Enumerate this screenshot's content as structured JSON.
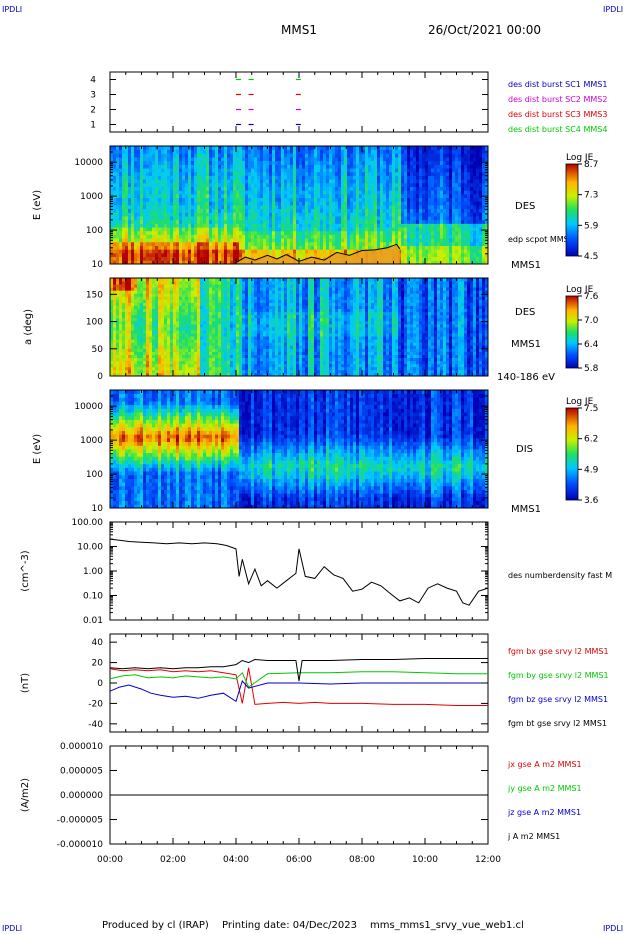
{
  "header": {
    "corner_label": "IPDLI",
    "spacecraft": "MMS1",
    "date": "26/Oct/2021 00:00"
  },
  "footer": {
    "producer": "Produced by cl (IRAP)",
    "printing": "Printing date: 04/Dec/2023",
    "product": "mms_mms1_srvy_vue_web1.cl"
  },
  "colors": {
    "red": "#e00000",
    "green": "#00c800",
    "blue": "#0000c8",
    "magenta": "#d000d0",
    "black": "#000000",
    "density": "#e8a020"
  },
  "chart_data": [
    {
      "type": "scatter",
      "panel": "burst-availability",
      "yticks": [
        "1",
        "2",
        "3",
        "4"
      ],
      "ylim": [
        0.5,
        4.5
      ],
      "xlim": [
        0,
        12
      ],
      "series": [
        {
          "name": "des dist burst SC1 MMS1",
          "color": "#0000c8",
          "level": 1,
          "hours": [
            4.0,
            4.4,
            5.9
          ]
        },
        {
          "name": "des dist burst SC2 MMS2",
          "color": "#d000d0",
          "level": 2,
          "hours": [
            4.0,
            4.4,
            5.9
          ]
        },
        {
          "name": "des dist burst SC3 MMS3",
          "color": "#e00000",
          "level": 3,
          "hours": [
            4.0,
            4.4,
            5.9
          ]
        },
        {
          "name": "des dist burst SC4 MMS4",
          "color": "#00c800",
          "level": 4,
          "hours": [
            4.0,
            4.4,
            5.9
          ]
        }
      ]
    },
    {
      "type": "heatmap",
      "panel": "des-energy",
      "ylabel": "E (eV)",
      "yscale": "log",
      "ylim": [
        10,
        30000
      ],
      "yticks": [
        "10",
        "100",
        "1000",
        "10000"
      ],
      "label_top": "DES",
      "label_bottom": "MMS1",
      "overlay_label": "edp scpot MMS1",
      "colorbar": {
        "title": "Log JE",
        "ticks": [
          "8.7",
          "7.3",
          "5.9",
          "4.5"
        ],
        "min": 4.5,
        "max": 8.7
      },
      "scpot_hours": [
        4.0,
        4.3,
        4.6,
        5.0,
        5.3,
        5.6,
        6.0,
        6.4,
        6.8,
        7.2,
        7.6,
        8.0,
        8.4,
        8.8,
        9.1,
        9.2
      ],
      "scpot_ev": [
        11,
        16,
        13,
        18,
        14,
        19,
        12,
        16,
        13,
        22,
        18,
        25,
        26,
        30,
        38,
        28
      ]
    },
    {
      "type": "heatmap",
      "panel": "des-pitch-angle",
      "ylabel": "a (deg)",
      "ylim": [
        0,
        180
      ],
      "yticks": [
        "0",
        "50",
        "100",
        "150"
      ],
      "label_top": "DES",
      "label_bottom": "MMS1",
      "energy_range": "140-186 eV",
      "colorbar": {
        "title": "Log JE",
        "ticks": [
          "7.6",
          "7.0",
          "6.4",
          "5.8"
        ],
        "min": 5.8,
        "max": 7.6
      }
    },
    {
      "type": "heatmap",
      "panel": "dis-energy",
      "ylabel": "E (eV)",
      "yscale": "log",
      "ylim": [
        10,
        30000
      ],
      "yticks": [
        "10",
        "100",
        "1000",
        "10000"
      ],
      "label_top": "DIS",
      "label_bottom": "MMS1",
      "colorbar": {
        "title": "Log JE",
        "ticks": [
          "7.5",
          "6.2",
          "4.9",
          "3.6"
        ],
        "min": 3.6,
        "max": 7.5
      }
    },
    {
      "type": "line",
      "panel": "density",
      "ylabel": "(cm^-3)",
      "yscale": "log",
      "ylim": [
        0.01,
        100
      ],
      "yticks": [
        "0.01",
        "0.10",
        "1.00",
        "10.00",
        "100.00"
      ],
      "series": [
        {
          "name": "des numberdensity fast M",
          "color": "#000000",
          "hours": [
            0,
            0.3,
            0.6,
            1.0,
            1.4,
            1.8,
            2.2,
            2.6,
            3.0,
            3.4,
            3.7,
            4.0,
            4.1,
            4.2,
            4.4,
            4.6,
            4.8,
            5.0,
            5.3,
            5.6,
            5.9,
            6.0,
            6.2,
            6.5,
            6.8,
            7.1,
            7.4,
            7.7,
            8.0,
            8.3,
            8.6,
            8.9,
            9.2,
            9.5,
            9.8,
            10.1,
            10.4,
            10.7,
            11.0,
            11.2,
            11.4,
            11.7,
            12.0
          ],
          "values": [
            20,
            18,
            16,
            15,
            14,
            13,
            14,
            13,
            14,
            13,
            11,
            8,
            0.6,
            3,
            0.3,
            1.2,
            0.25,
            0.4,
            0.2,
            0.4,
            0.8,
            8,
            0.6,
            0.5,
            1.5,
            0.7,
            0.5,
            0.15,
            0.18,
            0.35,
            0.25,
            0.12,
            0.06,
            0.08,
            0.05,
            0.2,
            0.3,
            0.2,
            0.15,
            0.05,
            0.04,
            0.15,
            0.2
          ]
        }
      ]
    },
    {
      "type": "line",
      "panel": "magnetic-field",
      "ylabel": "(nT)",
      "ylim": [
        -48,
        48
      ],
      "yticks": [
        "-40",
        "-20",
        "0",
        "20",
        "40"
      ],
      "series": [
        {
          "name": "fgm bx gse srvy l2 MMS1",
          "color": "#e00000",
          "hours": [
            0,
            0.4,
            0.8,
            1.2,
            1.6,
            2.0,
            2.4,
            2.8,
            3.2,
            3.6,
            4.0,
            4.2,
            4.4,
            4.6,
            5.0,
            5.5,
            6.0,
            6.5,
            7.0,
            8.0,
            9.0,
            10.0,
            11.0,
            12.0
          ],
          "values": [
            14,
            12,
            13,
            12,
            13,
            11,
            12,
            11,
            12,
            10,
            8,
            -20,
            15,
            -21,
            -20,
            -19,
            -20,
            -19,
            -20,
            -20,
            -21,
            -21,
            -22,
            -22
          ]
        },
        {
          "name": "fgm by gse srvy l2 MMS1",
          "color": "#00c800",
          "hours": [
            0,
            0.4,
            0.8,
            1.2,
            1.6,
            2.0,
            2.4,
            2.8,
            3.2,
            3.6,
            4.0,
            4.2,
            4.4,
            5.0,
            6.0,
            7.0,
            8.0,
            9.0,
            10.0,
            11.0,
            12.0
          ],
          "values": [
            4,
            7,
            8,
            5,
            6,
            5,
            7,
            6,
            5,
            6,
            4,
            10,
            -4,
            9,
            10,
            10,
            11,
            11,
            10,
            9,
            9
          ]
        },
        {
          "name": "fgm bz gse srvy l2 MMS1",
          "color": "#0000c8",
          "hours": [
            0,
            0.3,
            0.6,
            1.0,
            1.3,
            1.6,
            2.0,
            2.4,
            2.8,
            3.2,
            3.6,
            4.0,
            4.2,
            4.4,
            5.0,
            6.0,
            7.0,
            8.0,
            9.0,
            10.0,
            11.0,
            12.0
          ],
          "values": [
            -8,
            -4,
            -2,
            -6,
            -10,
            -12,
            -14,
            -13,
            -15,
            -12,
            -10,
            -18,
            2,
            -5,
            0,
            0,
            -1,
            0,
            0,
            0,
            0,
            0
          ]
        },
        {
          "name": "fgm bt gse srvy l2 MMS1",
          "color": "#000000",
          "hours": [
            0,
            0.4,
            0.8,
            1.2,
            1.6,
            2.0,
            2.4,
            2.8,
            3.2,
            3.6,
            4.0,
            4.2,
            4.4,
            4.6,
            5.0,
            5.9,
            6.0,
            6.1,
            7.0,
            8.0,
            9.0,
            10.0,
            11.0,
            12.0
          ],
          "values": [
            15,
            14,
            15,
            14,
            15,
            14,
            15,
            15,
            16,
            16,
            18,
            22,
            20,
            23,
            22,
            22,
            2,
            22,
            22,
            23,
            23,
            24,
            24,
            24
          ]
        }
      ]
    },
    {
      "type": "line",
      "panel": "current-density",
      "ylabel": "(A/m2)",
      "ylim": [
        -1e-05,
        1e-05
      ],
      "yticks": [
        "-0.000010",
        "-0.000005",
        "0.000000",
        "0.000005",
        "0.000010"
      ],
      "xticks": [
        "00:00",
        "02:00",
        "04:00",
        "06:00",
        "08:00",
        "10:00",
        "12:00"
      ],
      "xlim": [
        0,
        12
      ],
      "series": [
        {
          "name": "jx gse A m2 MMS1",
          "color": "#e00000",
          "hours": [
            0,
            12
          ],
          "values": [
            0,
            0
          ]
        },
        {
          "name": "jy gse A m2 MMS1",
          "color": "#00c800",
          "hours": [
            0,
            12
          ],
          "values": [
            0,
            0
          ]
        },
        {
          "name": "jz gse A m2 MMS1",
          "color": "#0000c8",
          "hours": [
            0,
            12
          ],
          "values": [
            0,
            0
          ]
        },
        {
          "name": "j A m2 MMS1",
          "color": "#000000",
          "hours": [
            0,
            12
          ],
          "values": [
            0,
            0
          ]
        }
      ]
    }
  ]
}
